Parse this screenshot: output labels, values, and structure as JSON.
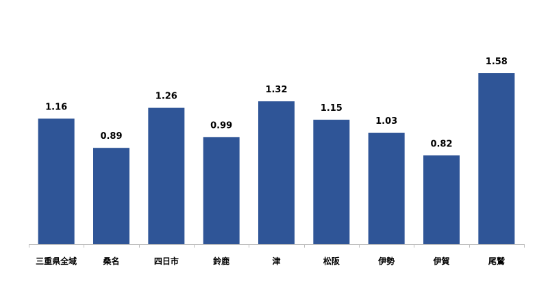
{
  "chart_data": {
    "type": "bar",
    "title": "",
    "xlabel": "",
    "ylabel": "",
    "categories": [
      "三重県全域",
      "桑名",
      "四日市",
      "鈴鹿",
      "津",
      "松阪",
      "伊勢",
      "伊賀",
      "尾鷲"
    ],
    "values": [
      1.16,
      0.89,
      1.26,
      0.99,
      1.32,
      1.15,
      1.03,
      0.82,
      1.58
    ],
    "value_labels": [
      "1.16",
      "0.89",
      "1.26",
      "0.99",
      "1.32",
      "1.15",
      "1.03",
      "0.82",
      "1.58"
    ],
    "ylim": [
      0,
      1.58
    ],
    "grid": false,
    "bar_color": "#2f5597"
  }
}
